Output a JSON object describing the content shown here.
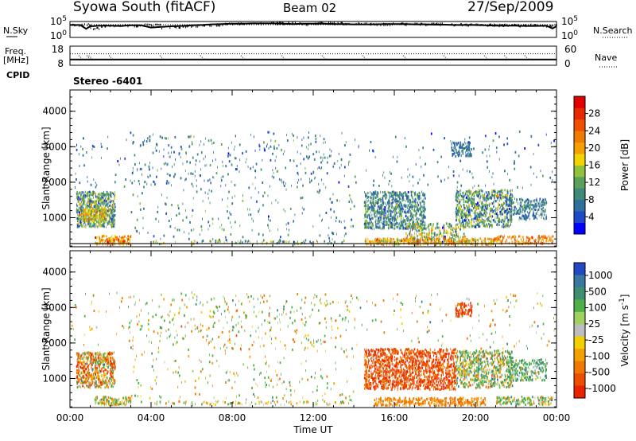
{
  "header": {
    "station": "Syowa South (fitACF)",
    "beam": "Beam 02",
    "date": "27/Sep/2009"
  },
  "chart_data": [
    {
      "type": "line",
      "panel": "noise",
      "left_label": "N.Sky",
      "right_label": "N.Search",
      "left_ticks": [
        "10^5",
        "10^0"
      ],
      "right_ticks": [
        "10^5",
        "10^0"
      ],
      "ylim": [
        0,
        5
      ],
      "series_name": "N.Sky",
      "x_hours": [
        0,
        0.5,
        0.8,
        1,
        1.5,
        2,
        2.5,
        3,
        3.5,
        4,
        4.5,
        5,
        5.5,
        6,
        6.5,
        7,
        7.5,
        8,
        8.5,
        9,
        9.5,
        10,
        10.5,
        11,
        11.5,
        12,
        12.5,
        13,
        13.5,
        14,
        14.5,
        15,
        15.5,
        16,
        16.5,
        17,
        17.5,
        18,
        18.5,
        19,
        19.5,
        20,
        20.5,
        21,
        21.5,
        22,
        22.5,
        23,
        23.5,
        23.8,
        24
      ],
      "values_log10": [
        3.9,
        3.9,
        2.7,
        3.5,
        3.7,
        3.7,
        3.6,
        3.8,
        3.8,
        3.1,
        3.3,
        3.5,
        3.6,
        3.8,
        3.9,
        4.1,
        4.2,
        4.3,
        4.3,
        4.4,
        4.4,
        4.4,
        4.3,
        4.2,
        4.3,
        4.3,
        4.3,
        4.2,
        4.2,
        4.1,
        4.1,
        4.1,
        4.2,
        4.2,
        4.2,
        4.1,
        4.1,
        4.0,
        4.0,
        3.9,
        3.9,
        3.9,
        3.8,
        3.7,
        3.7,
        3.7,
        3.6,
        3.6,
        3.7,
        2.8,
        3.5
      ]
    },
    {
      "type": "line",
      "panel": "frequency",
      "left_label": "Freq.",
      "left_unit": "[MHz]",
      "left_ticks": [
        "18",
        "8"
      ],
      "right_label": "Nave",
      "right_ticks": [
        "60",
        "0"
      ],
      "ylim": [
        8,
        18
      ],
      "frequency_mhz": 11.0,
      "nave_level": 36,
      "nave_dip_hours": [
        0.5,
        0.9,
        1.0,
        2.0,
        4.5,
        6.5,
        8.5,
        10.5,
        12.5,
        14.5,
        16.5,
        18.5,
        20.5,
        21.5,
        22.5
      ]
    },
    {
      "type": "label",
      "panel": "cpid",
      "left_label": "CPID",
      "text": "Stereo -6401"
    },
    {
      "type": "heatmap",
      "panel": "power",
      "ylabel": "Slant Range [km]",
      "y_ticks": [
        1000,
        2000,
        3000,
        4000
      ],
      "ylim": [
        180,
        4600
      ],
      "colorbar_label": "Power [dB]",
      "colorbar_ticks": [
        4,
        8,
        12,
        16,
        20,
        24,
        28
      ],
      "colorbar_range": [
        0,
        32
      ],
      "colorbar_colors": [
        "#0000ff",
        "#1f49c8",
        "#2e6f9b",
        "#3f8a78",
        "#5aa15a",
        "#90c23c",
        "#f2d500",
        "#f4a000",
        "#f17a00",
        "#ee5000",
        "#e72900",
        "#e00000"
      ],
      "regions": [
        {
          "x": [
            0.3,
            2.2
          ],
          "y": [
            700,
            1700
          ],
          "mean": 11,
          "spread": 8,
          "density": 0.8
        },
        {
          "x": [
            0.6,
            1.8
          ],
          "y": [
            850,
            1200
          ],
          "mean": 18,
          "spread": 6,
          "density": 0.9
        },
        {
          "x": [
            1.2,
            3.0
          ],
          "y": [
            200,
            450
          ],
          "mean": 22,
          "spread": 8,
          "density": 0.7
        },
        {
          "x": [
            3.0,
            14.0
          ],
          "y": [
            250,
            3300
          ],
          "mean": 9,
          "spread": 5,
          "density": 0.025
        },
        {
          "x": [
            4.0,
            13.5
          ],
          "y": [
            220,
            320
          ],
          "mean": 12,
          "spread": 8,
          "density": 0.3
        },
        {
          "x": [
            14.5,
            17.5
          ],
          "y": [
            650,
            1700
          ],
          "mean": 9,
          "spread": 6,
          "density": 0.6
        },
        {
          "x": [
            16.5,
            19.5
          ],
          "y": [
            250,
            800
          ],
          "mean": 14,
          "spread": 9,
          "density": 0.4
        },
        {
          "x": [
            14.5,
            21.0
          ],
          "y": [
            200,
            380
          ],
          "mean": 20,
          "spread": 8,
          "density": 0.7
        },
        {
          "x": [
            19.0,
            21.8
          ],
          "y": [
            700,
            1750
          ],
          "mean": 11,
          "spread": 8,
          "density": 0.55
        },
        {
          "x": [
            21.5,
            23.5
          ],
          "y": [
            900,
            1500
          ],
          "mean": 8,
          "spread": 4,
          "density": 0.45
        },
        {
          "x": [
            18.8,
            19.8
          ],
          "y": [
            2700,
            3100
          ],
          "mean": 7,
          "spread": 3,
          "density": 0.6
        },
        {
          "x": [
            21.0,
            23.8
          ],
          "y": [
            220,
            450
          ],
          "mean": 22,
          "spread": 6,
          "density": 0.6
        },
        {
          "x": [
            0.0,
            24.0
          ],
          "y": [
            1800,
            3400
          ],
          "mean": 7,
          "spread": 4,
          "density": 0.02
        }
      ]
    },
    {
      "type": "heatmap",
      "panel": "velocity",
      "ylabel": "Slant Range [km]",
      "xlabel": "Time UT",
      "x_ticks": [
        "00:00",
        "04:00",
        "08:00",
        "12:00",
        "16:00",
        "20:00",
        "00:00"
      ],
      "xlim": [
        0,
        24
      ],
      "y_ticks": [
        1000,
        2000,
        3000,
        4000
      ],
      "ylim": [
        180,
        4600
      ],
      "colorbar_label": "Velocity [m s^-1]",
      "colorbar_ticks": [
        "1000",
        "500",
        "100",
        "25",
        "-25",
        "-100",
        "-500",
        "-1000"
      ],
      "colorbar_colors": [
        "#2348c4",
        "#3878a0",
        "#3e8f70",
        "#50b048",
        "#a0d060",
        "#bdbdbd",
        "#f2d000",
        "#f4a000",
        "#f07800",
        "#ec4e00",
        "#e82400"
      ],
      "regions": [
        {
          "x": [
            0.3,
            2.2
          ],
          "y": [
            700,
            1700
          ],
          "mean": -120,
          "spread": 500,
          "density": 0.7
        },
        {
          "x": [
            1.2,
            3.0
          ],
          "y": [
            200,
            450
          ],
          "mean": 50,
          "spread": 300,
          "density": 0.6
        },
        {
          "x": [
            3.0,
            14.0
          ],
          "y": [
            250,
            3300
          ],
          "mean": 60,
          "spread": 300,
          "density": 0.025
        },
        {
          "x": [
            4.0,
            13.5
          ],
          "y": [
            220,
            320
          ],
          "mean": 0,
          "spread": 200,
          "density": 0.3
        },
        {
          "x": [
            14.5,
            19.0
          ],
          "y": [
            650,
            1800
          ],
          "mean": -400,
          "spread": 300,
          "density": 0.65
        },
        {
          "x": [
            15.0,
            20.5
          ],
          "y": [
            200,
            420
          ],
          "mean": -150,
          "spread": 120,
          "density": 0.7
        },
        {
          "x": [
            19.0,
            21.8
          ],
          "y": [
            700,
            1750
          ],
          "mean": 150,
          "spread": 400,
          "density": 0.5
        },
        {
          "x": [
            21.5,
            23.5
          ],
          "y": [
            900,
            1500
          ],
          "mean": 250,
          "spread": 300,
          "density": 0.45
        },
        {
          "x": [
            19.0,
            19.8
          ],
          "y": [
            2700,
            3100
          ],
          "mean": -450,
          "spread": 150,
          "density": 0.6
        },
        {
          "x": [
            21.0,
            23.8
          ],
          "y": [
            220,
            450
          ],
          "mean": 120,
          "spread": 300,
          "density": 0.6
        },
        {
          "x": [
            0.0,
            24.0
          ],
          "y": [
            1800,
            3400
          ],
          "mean": 80,
          "spread": 400,
          "density": 0.02
        }
      ]
    }
  ]
}
